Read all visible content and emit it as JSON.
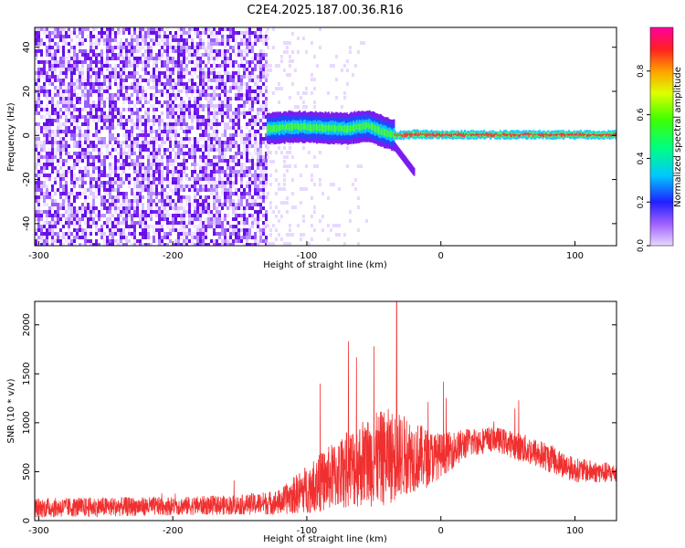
{
  "title": "C2E4.2025.187.00.36.R16",
  "colors": {
    "snr_line": "#f03030",
    "spectrogram_noise": "#7a1cf0",
    "spectrogram_core": "#ff2a2a",
    "axis": "#000000"
  },
  "chart_data": [
    {
      "type": "heatmap",
      "xlabel": "Height of straight line (km)",
      "ylabel": "Frequency (Hz)",
      "xlim": [
        -303,
        131
      ],
      "ylim": [
        -50,
        49
      ],
      "x_ticks": [
        -300,
        -200,
        -100,
        0,
        100
      ],
      "y_ticks": [
        -40,
        -20,
        0,
        20,
        40
      ],
      "colorbar": {
        "label": "Normalized spectral amplitude",
        "range": [
          0,
          1
        ],
        "ticks": [
          "0.0",
          "0.2",
          "0.4",
          "0.6",
          "0.8"
        ],
        "tick_values": [
          0.0,
          0.2,
          0.4,
          0.6,
          0.8
        ]
      },
      "features": {
        "noise_region_x": [
          -303,
          -130
        ],
        "signal_track": [
          [
            -130,
            3
          ],
          [
            -110,
            4
          ],
          [
            -90,
            3.5
          ],
          [
            -70,
            3
          ],
          [
            -55,
            4.5
          ],
          [
            -45,
            2
          ],
          [
            -35,
            0
          ],
          [
            -20,
            0.5
          ],
          [
            0,
            0.3
          ],
          [
            50,
            0.3
          ],
          [
            100,
            0.3
          ],
          [
            131,
            0.3
          ]
        ],
        "descending_branch": [
          [
            -35,
            -5
          ],
          [
            -20,
            -17
          ]
        ]
      }
    },
    {
      "type": "line",
      "xlabel": "Height of straight line (km)",
      "ylabel": "SNR (10 * v/v)",
      "xlim": [
        -303,
        131
      ],
      "ylim": [
        0,
        2240
      ],
      "x_ticks": [
        -300,
        -200,
        -100,
        0,
        100
      ],
      "y_ticks": [
        0,
        500,
        1000,
        1500,
        2000
      ],
      "envelope": [
        {
          "x": -303,
          "base": 100,
          "amp": 200
        },
        {
          "x": -250,
          "base": 110,
          "amp": 200
        },
        {
          "x": -200,
          "base": 120,
          "amp": 190
        },
        {
          "x": -150,
          "base": 130,
          "amp": 200
        },
        {
          "x": -120,
          "base": 150,
          "amp": 260
        },
        {
          "x": -100,
          "base": 250,
          "amp": 500
        },
        {
          "x": -80,
          "base": 350,
          "amp": 700
        },
        {
          "x": -60,
          "base": 450,
          "amp": 900
        },
        {
          "x": -40,
          "base": 500,
          "amp": 1000
        },
        {
          "x": -25,
          "base": 550,
          "amp": 800
        },
        {
          "x": -10,
          "base": 550,
          "amp": 600
        },
        {
          "x": 0,
          "base": 600,
          "amp": 450
        },
        {
          "x": 20,
          "base": 750,
          "amp": 300
        },
        {
          "x": 40,
          "base": 800,
          "amp": 250
        },
        {
          "x": 60,
          "base": 700,
          "amp": 300
        },
        {
          "x": 80,
          "base": 600,
          "amp": 300
        },
        {
          "x": 100,
          "base": 480,
          "amp": 250
        },
        {
          "x": 131,
          "base": 450,
          "amp": 200
        }
      ],
      "peaks": [
        {
          "x": -33,
          "y": 2240
        },
        {
          "x": -50,
          "y": 1780
        },
        {
          "x": -63,
          "y": 1670
        },
        {
          "x": -90,
          "y": 1400
        },
        {
          "x": 2,
          "y": 1420
        },
        {
          "x": 58,
          "y": 1230
        }
      ]
    }
  ]
}
